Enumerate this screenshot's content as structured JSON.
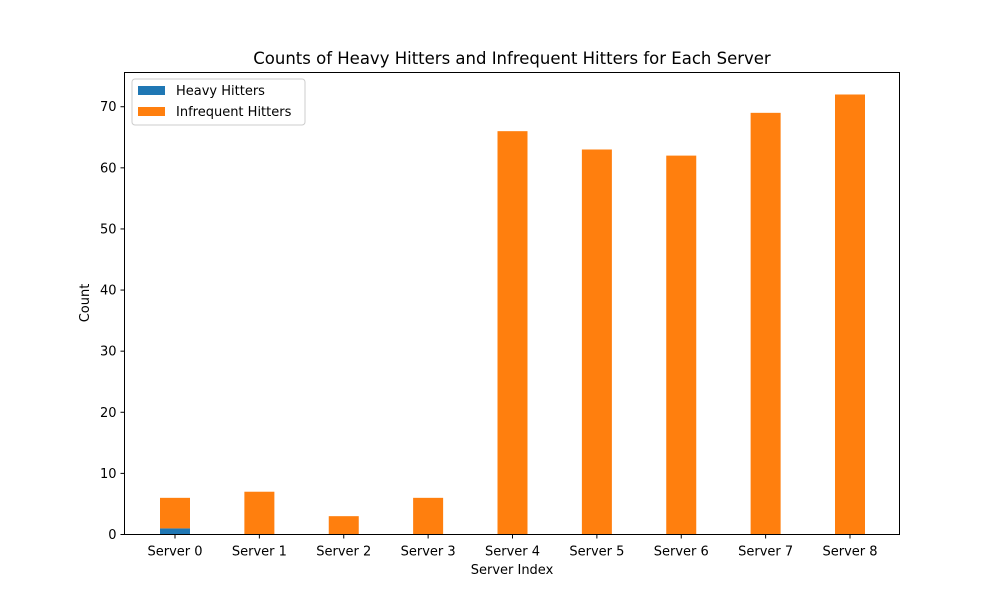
{
  "chart_data": {
    "type": "bar",
    "stacked": true,
    "title": "Counts of Heavy Hitters and Infrequent Hitters for Each Server",
    "xlabel": "Server Index",
    "ylabel": "Count",
    "categories": [
      "Server 0",
      "Server 1",
      "Server 2",
      "Server 3",
      "Server 4",
      "Server 5",
      "Server 6",
      "Server 7",
      "Server 8"
    ],
    "series": [
      {
        "name": "Heavy Hitters",
        "color": "#1f77b4",
        "values": [
          1,
          0,
          0,
          0,
          0,
          0,
          0,
          0,
          0
        ]
      },
      {
        "name": "Infrequent Hitters",
        "color": "#ff7f0e",
        "values": [
          5,
          7,
          3,
          6,
          66,
          63,
          62,
          69,
          72
        ]
      }
    ],
    "ylim": [
      0,
      75.6
    ],
    "yticks": [
      0,
      10,
      20,
      30,
      40,
      50,
      60,
      70
    ],
    "legend_position": "upper-left",
    "grid": false
  }
}
